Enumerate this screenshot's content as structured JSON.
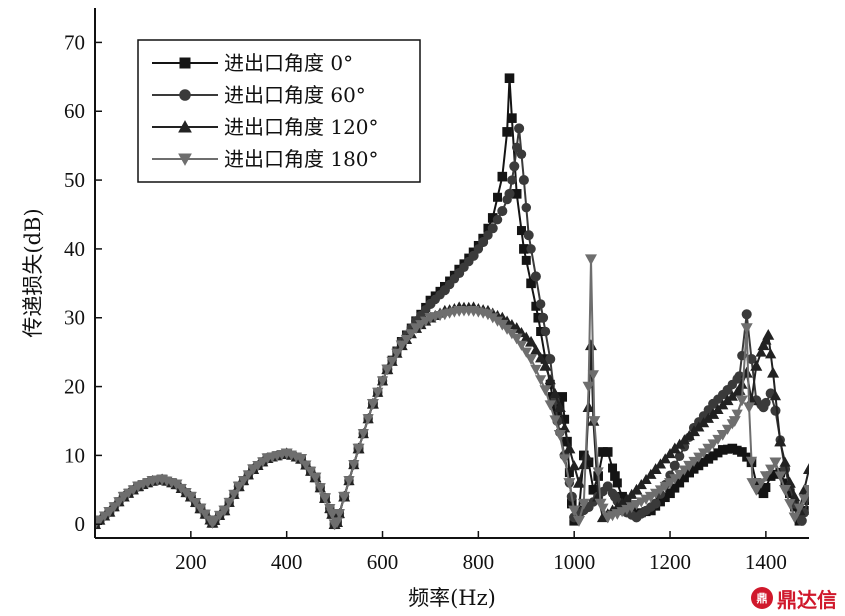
{
  "chart_data": {
    "type": "line",
    "title": "",
    "xlabel": "频率(Hz)",
    "ylabel": "传递损失(dB)",
    "xlim": [
      0,
      1490
    ],
    "ylim": [
      -2,
      75
    ],
    "xticks": [
      200,
      400,
      600,
      800,
      1000,
      1200,
      1400
    ],
    "yticks": [
      0,
      10,
      20,
      30,
      40,
      50,
      60,
      70
    ],
    "grid": false,
    "legend_position": "top-left",
    "series": [
      {
        "name": "进出口角度 0°",
        "marker": "square",
        "color": "#141414",
        "points": [
          [
            0,
            0
          ],
          [
            30,
            1.8
          ],
          [
            60,
            4
          ],
          [
            90,
            5.5
          ],
          [
            120,
            6.3
          ],
          [
            140,
            6.5
          ],
          [
            170,
            5.8
          ],
          [
            200,
            4
          ],
          [
            220,
            2.3
          ],
          [
            245,
            0.2
          ],
          [
            270,
            2
          ],
          [
            300,
            5.5
          ],
          [
            330,
            8
          ],
          [
            360,
            9.6
          ],
          [
            400,
            10.3
          ],
          [
            430,
            9.5
          ],
          [
            460,
            6.8
          ],
          [
            480,
            3.8
          ],
          [
            495,
            1.5
          ],
          [
            500,
            0
          ],
          [
            505,
            0.3
          ],
          [
            520,
            4
          ],
          [
            550,
            11
          ],
          [
            580,
            17.5
          ],
          [
            610,
            22.5
          ],
          [
            640,
            26.5
          ],
          [
            670,
            29.5
          ],
          [
            700,
            32.5
          ],
          [
            730,
            34.5
          ],
          [
            760,
            37
          ],
          [
            790,
            39.5
          ],
          [
            810,
            41.5
          ],
          [
            830,
            44.5
          ],
          [
            850,
            50.5
          ],
          [
            860,
            57
          ],
          [
            865,
            64.8
          ],
          [
            870,
            59
          ],
          [
            880,
            48
          ],
          [
            895,
            40
          ],
          [
            910,
            35
          ],
          [
            925,
            30
          ],
          [
            940,
            24
          ],
          [
            955,
            18.5
          ],
          [
            965,
            16
          ],
          [
            975,
            18.5
          ],
          [
            985,
            12
          ],
          [
            995,
            3
          ],
          [
            1000,
            0.5
          ],
          [
            1010,
            2
          ],
          [
            1020,
            10
          ],
          [
            1030,
            9
          ],
          [
            1040,
            5
          ],
          [
            1050,
            7
          ],
          [
            1060,
            10.5
          ],
          [
            1070,
            10.5
          ],
          [
            1085,
            7
          ],
          [
            1100,
            4
          ],
          [
            1130,
            1.5
          ],
          [
            1160,
            2
          ],
          [
            1200,
            4.5
          ],
          [
            1240,
            7.5
          ],
          [
            1280,
            9.5
          ],
          [
            1310,
            10.8
          ],
          [
            1330,
            11
          ],
          [
            1350,
            10.5
          ],
          [
            1370,
            9
          ],
          [
            1380,
            6
          ],
          [
            1395,
            4.5
          ],
          [
            1410,
            7
          ],
          [
            1430,
            7.5
          ],
          [
            1450,
            4.5
          ],
          [
            1470,
            0.5
          ],
          [
            1490,
            3.5
          ]
        ]
      },
      {
        "name": "进出口角度 60°",
        "marker": "circle",
        "color": "#3a3a3a",
        "points": [
          [
            0,
            0
          ],
          [
            30,
            1.8
          ],
          [
            60,
            4
          ],
          [
            90,
            5.5
          ],
          [
            120,
            6.3
          ],
          [
            140,
            6.5
          ],
          [
            170,
            5.8
          ],
          [
            200,
            4
          ],
          [
            220,
            2.3
          ],
          [
            245,
            0.2
          ],
          [
            270,
            2
          ],
          [
            300,
            5.5
          ],
          [
            330,
            8
          ],
          [
            360,
            9.6
          ],
          [
            400,
            10.3
          ],
          [
            430,
            9.5
          ],
          [
            460,
            6.8
          ],
          [
            480,
            3.8
          ],
          [
            495,
            1.5
          ],
          [
            500,
            0
          ],
          [
            505,
            0.3
          ],
          [
            520,
            4
          ],
          [
            550,
            11
          ],
          [
            580,
            17.5
          ],
          [
            610,
            22.5
          ],
          [
            640,
            26.5
          ],
          [
            670,
            29.5
          ],
          [
            700,
            32
          ],
          [
            730,
            34
          ],
          [
            760,
            36.5
          ],
          [
            790,
            39
          ],
          [
            810,
            41
          ],
          [
            830,
            43
          ],
          [
            850,
            45.5
          ],
          [
            865,
            48
          ],
          [
            875,
            52
          ],
          [
            885,
            57.5
          ],
          [
            895,
            50
          ],
          [
            905,
            42
          ],
          [
            920,
            36
          ],
          [
            935,
            30
          ],
          [
            950,
            24
          ],
          [
            965,
            15
          ],
          [
            980,
            10
          ],
          [
            995,
            4
          ],
          [
            1000,
            1
          ],
          [
            1010,
            1.5
          ],
          [
            1030,
            2.5
          ],
          [
            1050,
            4
          ],
          [
            1070,
            5.5
          ],
          [
            1085,
            4
          ],
          [
            1100,
            2
          ],
          [
            1130,
            1
          ],
          [
            1170,
            3
          ],
          [
            1210,
            8.5
          ],
          [
            1250,
            14
          ],
          [
            1290,
            17.5
          ],
          [
            1320,
            19.5
          ],
          [
            1345,
            21.5
          ],
          [
            1360,
            30.5
          ],
          [
            1370,
            24
          ],
          [
            1380,
            18
          ],
          [
            1395,
            17
          ],
          [
            1410,
            19
          ],
          [
            1420,
            16.5
          ],
          [
            1440,
            8
          ],
          [
            1460,
            3
          ],
          [
            1475,
            0.5
          ],
          [
            1490,
            4
          ]
        ]
      },
      {
        "name": "进出口角度 120°",
        "marker": "triangle-up",
        "color": "#222222",
        "points": [
          [
            0,
            0
          ],
          [
            30,
            1.8
          ],
          [
            60,
            4
          ],
          [
            90,
            5.5
          ],
          [
            120,
            6.3
          ],
          [
            140,
            6.5
          ],
          [
            170,
            5.8
          ],
          [
            200,
            4
          ],
          [
            220,
            2.3
          ],
          [
            245,
            0.2
          ],
          [
            270,
            2
          ],
          [
            300,
            5.5
          ],
          [
            330,
            8
          ],
          [
            360,
            9.6
          ],
          [
            400,
            10.3
          ],
          [
            430,
            9.5
          ],
          [
            460,
            6.8
          ],
          [
            480,
            3.8
          ],
          [
            495,
            1.5
          ],
          [
            500,
            0
          ],
          [
            505,
            0.3
          ],
          [
            520,
            4
          ],
          [
            550,
            11
          ],
          [
            580,
            17.5
          ],
          [
            610,
            22.5
          ],
          [
            640,
            26
          ],
          [
            670,
            28.5
          ],
          [
            700,
            30
          ],
          [
            730,
            31
          ],
          [
            760,
            31.5
          ],
          [
            790,
            31.5
          ],
          [
            820,
            31
          ],
          [
            850,
            30
          ],
          [
            880,
            28.5
          ],
          [
            910,
            26.5
          ],
          [
            940,
            23
          ],
          [
            970,
            17
          ],
          [
            990,
            11
          ],
          [
            1010,
            6
          ],
          [
            1025,
            10
          ],
          [
            1030,
            17
          ],
          [
            1035,
            26
          ],
          [
            1040,
            15
          ],
          [
            1050,
            4
          ],
          [
            1060,
            1
          ],
          [
            1080,
            2
          ],
          [
            1100,
            3
          ],
          [
            1130,
            5
          ],
          [
            1170,
            8
          ],
          [
            1210,
            11
          ],
          [
            1250,
            13.5
          ],
          [
            1290,
            16
          ],
          [
            1320,
            18
          ],
          [
            1345,
            19.5
          ],
          [
            1360,
            22
          ],
          [
            1370,
            18
          ],
          [
            1380,
            23
          ],
          [
            1395,
            26
          ],
          [
            1405,
            27.5
          ],
          [
            1415,
            22
          ],
          [
            1430,
            12
          ],
          [
            1450,
            6
          ],
          [
            1470,
            2
          ],
          [
            1490,
            8
          ]
        ]
      },
      {
        "name": "进出口角度 180°",
        "marker": "triangle-down",
        "color": "#6e6e6e",
        "points": [
          [
            0,
            0
          ],
          [
            30,
            1.8
          ],
          [
            60,
            4
          ],
          [
            90,
            5.5
          ],
          [
            120,
            6.3
          ],
          [
            140,
            6.5
          ],
          [
            170,
            5.8
          ],
          [
            200,
            4
          ],
          [
            220,
            2.3
          ],
          [
            245,
            0.2
          ],
          [
            270,
            2
          ],
          [
            300,
            5.5
          ],
          [
            330,
            8
          ],
          [
            360,
            9.6
          ],
          [
            400,
            10.3
          ],
          [
            430,
            9.5
          ],
          [
            460,
            6.8
          ],
          [
            480,
            3.8
          ],
          [
            495,
            1.5
          ],
          [
            500,
            0
          ],
          [
            505,
            0.3
          ],
          [
            520,
            4
          ],
          [
            550,
            11
          ],
          [
            580,
            17.5
          ],
          [
            610,
            22.5
          ],
          [
            640,
            26
          ],
          [
            670,
            28.5
          ],
          [
            700,
            30
          ],
          [
            730,
            30.5
          ],
          [
            760,
            31
          ],
          [
            790,
            31
          ],
          [
            820,
            30.5
          ],
          [
            850,
            29
          ],
          [
            880,
            27
          ],
          [
            910,
            24
          ],
          [
            940,
            19.5
          ],
          [
            970,
            13
          ],
          [
            990,
            6
          ],
          [
            1000,
            2
          ],
          [
            1010,
            0.5
          ],
          [
            1020,
            3
          ],
          [
            1030,
            20
          ],
          [
            1035,
            38.5
          ],
          [
            1042,
            15
          ],
          [
            1055,
            3
          ],
          [
            1070,
            1
          ],
          [
            1090,
            1.5
          ],
          [
            1120,
            2.5
          ],
          [
            1160,
            4
          ],
          [
            1200,
            6
          ],
          [
            1240,
            8.5
          ],
          [
            1280,
            11
          ],
          [
            1310,
            13
          ],
          [
            1335,
            15
          ],
          [
            1350,
            18
          ],
          [
            1360,
            28.5
          ],
          [
            1365,
            17
          ],
          [
            1372,
            6
          ],
          [
            1380,
            5
          ],
          [
            1400,
            7
          ],
          [
            1420,
            9
          ],
          [
            1440,
            5
          ],
          [
            1460,
            1
          ],
          [
            1490,
            5
          ]
        ]
      }
    ]
  },
  "watermark": {
    "logo_text": "鼎",
    "text": "鼎达信"
  }
}
